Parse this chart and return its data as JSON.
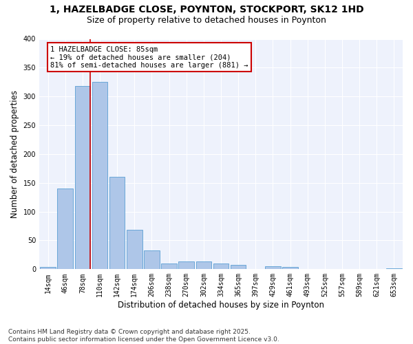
{
  "title": "1, HAZELBADGE CLOSE, POYNTON, STOCKPORT, SK12 1HD",
  "subtitle": "Size of property relative to detached houses in Poynton",
  "xlabel": "Distribution of detached houses by size in Poynton",
  "ylabel": "Number of detached properties",
  "categories": [
    "14sqm",
    "46sqm",
    "78sqm",
    "110sqm",
    "142sqm",
    "174sqm",
    "206sqm",
    "238sqm",
    "270sqm",
    "302sqm",
    "334sqm",
    "365sqm",
    "397sqm",
    "429sqm",
    "461sqm",
    "493sqm",
    "525sqm",
    "557sqm",
    "589sqm",
    "621sqm",
    "653sqm"
  ],
  "values": [
    4,
    140,
    318,
    325,
    160,
    68,
    33,
    10,
    13,
    13,
    10,
    7,
    0,
    5,
    4,
    0,
    0,
    0,
    0,
    0,
    2
  ],
  "bar_color": "#aec6e8",
  "bar_edge_color": "#5a9fd4",
  "vline_color": "#cc0000",
  "annotation_text": "1 HAZELBADGE CLOSE: 85sqm\n← 19% of detached houses are smaller (204)\n81% of semi-detached houses are larger (881) →",
  "ylim": [
    0,
    400
  ],
  "yticks": [
    0,
    50,
    100,
    150,
    200,
    250,
    300,
    350,
    400
  ],
  "background_color": "#eef2fc",
  "grid_color": "#ffffff",
  "footer": "Contains HM Land Registry data © Crown copyright and database right 2025.\nContains public sector information licensed under the Open Government Licence v3.0.",
  "title_fontsize": 10,
  "subtitle_fontsize": 9,
  "label_fontsize": 8.5,
  "tick_fontsize": 7,
  "footer_fontsize": 6.5,
  "annot_fontsize": 7.5
}
